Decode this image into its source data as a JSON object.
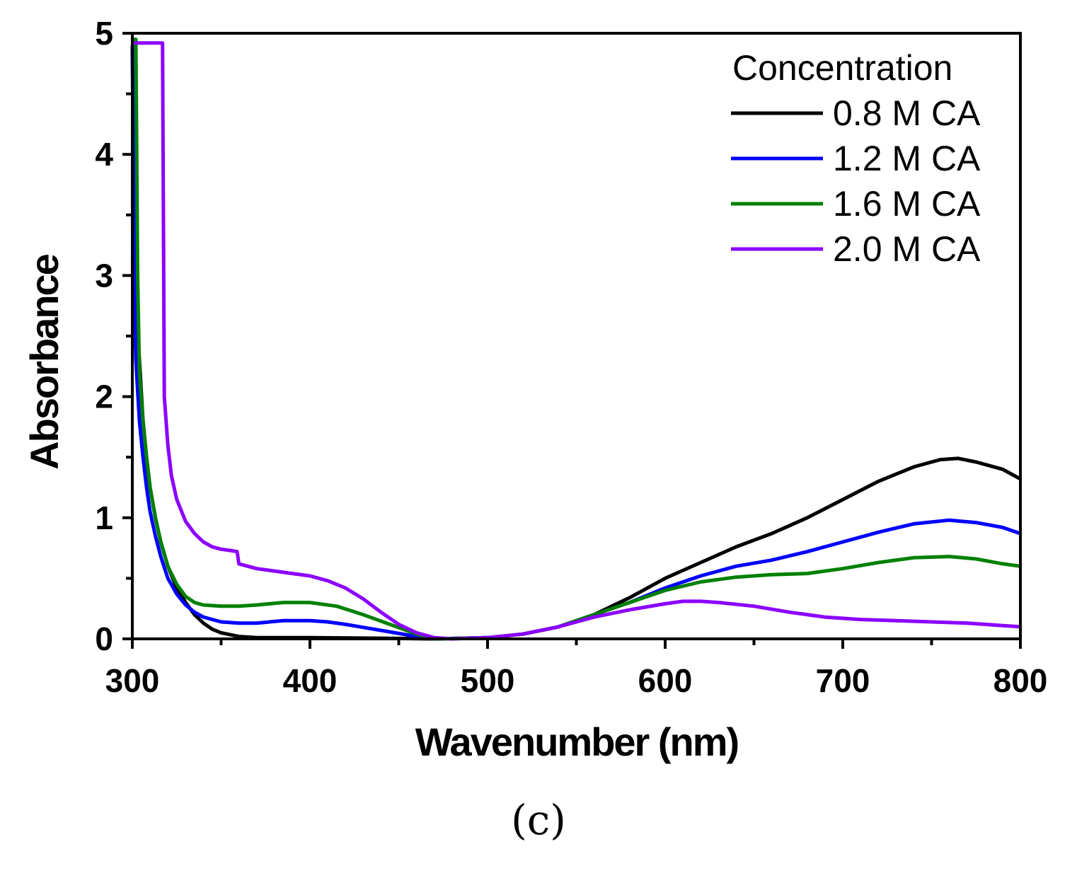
{
  "chart_data": {
    "type": "line",
    "title": "",
    "xlabel": "Wavenumber (nm)",
    "ylabel": "Absorbance",
    "xlim": [
      300,
      800
    ],
    "ylim": [
      0,
      5
    ],
    "xticks": [
      300,
      400,
      500,
      600,
      700,
      800
    ],
    "yticks": [
      0,
      1,
      2,
      3,
      4,
      5
    ],
    "x_minor_step": 50,
    "y_minor_step": 0.5,
    "grid": false,
    "legend": {
      "title": "Concentration",
      "position": "top-right"
    },
    "series": [
      {
        "name": "0.8 M CA",
        "color": "#000000",
        "points": [
          [
            300,
            4.9
          ],
          [
            301,
            3.6
          ],
          [
            302,
            2.9
          ],
          [
            304,
            2.3
          ],
          [
            306,
            1.8
          ],
          [
            308,
            1.5
          ],
          [
            310,
            1.25
          ],
          [
            313,
            1.0
          ],
          [
            316,
            0.8
          ],
          [
            320,
            0.6
          ],
          [
            325,
            0.42
          ],
          [
            330,
            0.3
          ],
          [
            335,
            0.2
          ],
          [
            340,
            0.13
          ],
          [
            345,
            0.08
          ],
          [
            350,
            0.05
          ],
          [
            360,
            0.02
          ],
          [
            370,
            0.01
          ],
          [
            400,
            0.01
          ],
          [
            440,
            0.005
          ],
          [
            470,
            0.0
          ],
          [
            500,
            0.01
          ],
          [
            520,
            0.04
          ],
          [
            540,
            0.1
          ],
          [
            560,
            0.2
          ],
          [
            580,
            0.34
          ],
          [
            600,
            0.5
          ],
          [
            620,
            0.63
          ],
          [
            640,
            0.76
          ],
          [
            660,
            0.87
          ],
          [
            680,
            1.0
          ],
          [
            700,
            1.15
          ],
          [
            720,
            1.3
          ],
          [
            740,
            1.42
          ],
          [
            755,
            1.48
          ],
          [
            765,
            1.49
          ],
          [
            775,
            1.46
          ],
          [
            790,
            1.4
          ],
          [
            800,
            1.32
          ]
        ]
      },
      {
        "name": "1.2 M CA",
        "color": "#0000ff",
        "points": [
          [
            300,
            4.9
          ],
          [
            301,
            3.0
          ],
          [
            302,
            2.3
          ],
          [
            304,
            1.8
          ],
          [
            306,
            1.5
          ],
          [
            308,
            1.25
          ],
          [
            310,
            1.05
          ],
          [
            313,
            0.85
          ],
          [
            316,
            0.68
          ],
          [
            320,
            0.5
          ],
          [
            325,
            0.37
          ],
          [
            330,
            0.28
          ],
          [
            335,
            0.22
          ],
          [
            340,
            0.18
          ],
          [
            350,
            0.14
          ],
          [
            360,
            0.13
          ],
          [
            370,
            0.13
          ],
          [
            385,
            0.15
          ],
          [
            400,
            0.15
          ],
          [
            410,
            0.14
          ],
          [
            420,
            0.12
          ],
          [
            440,
            0.07
          ],
          [
            460,
            0.02
          ],
          [
            470,
            0.0
          ],
          [
            500,
            0.01
          ],
          [
            520,
            0.04
          ],
          [
            540,
            0.1
          ],
          [
            560,
            0.2
          ],
          [
            580,
            0.3
          ],
          [
            600,
            0.42
          ],
          [
            620,
            0.52
          ],
          [
            640,
            0.6
          ],
          [
            660,
            0.65
          ],
          [
            680,
            0.72
          ],
          [
            700,
            0.8
          ],
          [
            720,
            0.88
          ],
          [
            740,
            0.95
          ],
          [
            760,
            0.98
          ],
          [
            775,
            0.96
          ],
          [
            790,
            0.92
          ],
          [
            800,
            0.87
          ]
        ]
      },
      {
        "name": "1.6 M CA",
        "color": "#008000",
        "points": [
          [
            300,
            4.95
          ],
          [
            302,
            4.95
          ],
          [
            303,
            3.0
          ],
          [
            304,
            2.2
          ],
          [
            306,
            1.8
          ],
          [
            308,
            1.5
          ],
          [
            310,
            1.25
          ],
          [
            313,
            1.0
          ],
          [
            316,
            0.8
          ],
          [
            320,
            0.6
          ],
          [
            325,
            0.45
          ],
          [
            330,
            0.35
          ],
          [
            335,
            0.3
          ],
          [
            340,
            0.28
          ],
          [
            350,
            0.27
          ],
          [
            360,
            0.27
          ],
          [
            370,
            0.28
          ],
          [
            385,
            0.3
          ],
          [
            400,
            0.3
          ],
          [
            415,
            0.27
          ],
          [
            430,
            0.2
          ],
          [
            445,
            0.12
          ],
          [
            460,
            0.04
          ],
          [
            470,
            0.0
          ],
          [
            500,
            0.01
          ],
          [
            520,
            0.04
          ],
          [
            540,
            0.1
          ],
          [
            560,
            0.2
          ],
          [
            580,
            0.3
          ],
          [
            600,
            0.4
          ],
          [
            620,
            0.47
          ],
          [
            640,
            0.51
          ],
          [
            660,
            0.53
          ],
          [
            680,
            0.54
          ],
          [
            700,
            0.58
          ],
          [
            720,
            0.63
          ],
          [
            740,
            0.67
          ],
          [
            760,
            0.68
          ],
          [
            775,
            0.66
          ],
          [
            790,
            0.62
          ],
          [
            800,
            0.6
          ]
        ]
      },
      {
        "name": "2.0 M CA",
        "color": "#8b00ff",
        "points": [
          [
            300,
            4.92
          ],
          [
            317,
            4.92
          ],
          [
            318,
            2.0
          ],
          [
            320,
            1.6
          ],
          [
            322,
            1.35
          ],
          [
            325,
            1.15
          ],
          [
            330,
            0.97
          ],
          [
            335,
            0.87
          ],
          [
            340,
            0.8
          ],
          [
            345,
            0.76
          ],
          [
            350,
            0.74
          ],
          [
            355,
            0.73
          ],
          [
            359,
            0.72
          ],
          [
            360,
            0.62
          ],
          [
            370,
            0.58
          ],
          [
            380,
            0.56
          ],
          [
            390,
            0.54
          ],
          [
            400,
            0.52
          ],
          [
            410,
            0.48
          ],
          [
            420,
            0.42
          ],
          [
            430,
            0.33
          ],
          [
            440,
            0.22
          ],
          [
            450,
            0.12
          ],
          [
            460,
            0.05
          ],
          [
            470,
            0.01
          ],
          [
            480,
            0.0
          ],
          [
            500,
            0.01
          ],
          [
            520,
            0.04
          ],
          [
            540,
            0.1
          ],
          [
            560,
            0.18
          ],
          [
            580,
            0.24
          ],
          [
            600,
            0.29
          ],
          [
            610,
            0.31
          ],
          [
            620,
            0.31
          ],
          [
            630,
            0.3
          ],
          [
            650,
            0.27
          ],
          [
            670,
            0.22
          ],
          [
            690,
            0.18
          ],
          [
            710,
            0.16
          ],
          [
            730,
            0.15
          ],
          [
            750,
            0.14
          ],
          [
            770,
            0.13
          ],
          [
            790,
            0.11
          ],
          [
            800,
            0.1
          ]
        ]
      }
    ]
  },
  "caption": "(c)"
}
